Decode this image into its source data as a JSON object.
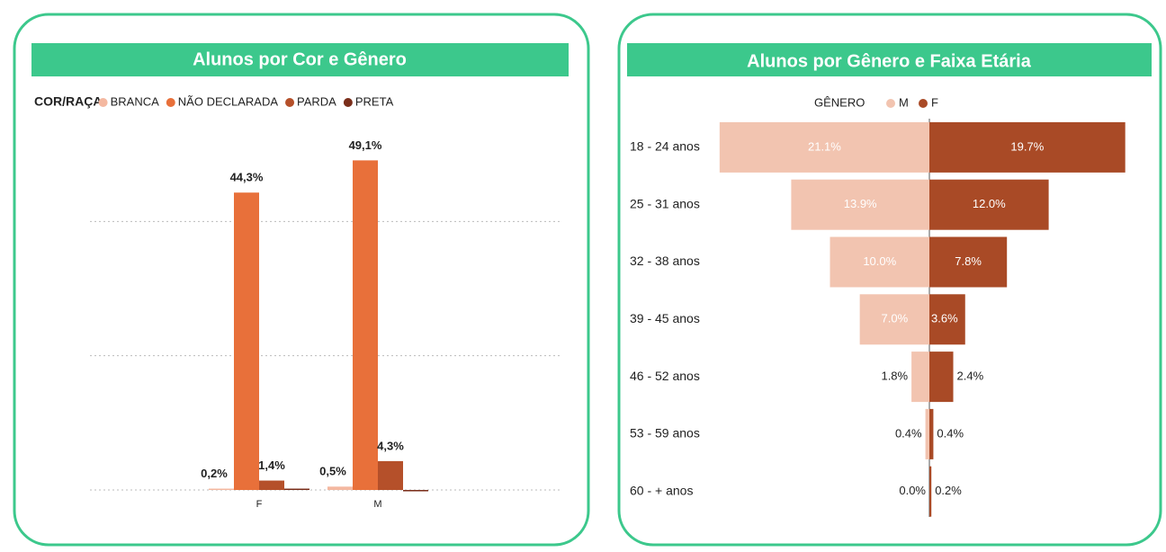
{
  "chart_data": [
    {
      "type": "bar",
      "title": "Alunos por Cor e Gênero",
      "legend_title": "COR/RAÇA",
      "categories": [
        "F",
        "M"
      ],
      "series": [
        {
          "name": "BRANCA",
          "color": "#f4b8a0",
          "values": [
            0.2,
            0.5
          ],
          "value_labels": [
            "0,2%",
            "0,5%"
          ]
        },
        {
          "name": "NÃO DECLARADA",
          "color": "#e8703a",
          "values": [
            44.3,
            49.1
          ],
          "value_labels": [
            "44,3%",
            "49,1%"
          ]
        },
        {
          "name": "PARDA",
          "color": "#b5502a",
          "values": [
            1.4,
            4.3
          ],
          "value_labels": [
            "1,4%",
            "4,3%"
          ]
        },
        {
          "name": "PRETA",
          "color": "#7a2e1a",
          "values": [
            0.2,
            0
          ],
          "value_labels": [
            null,
            null
          ]
        }
      ],
      "ylim": [
        0,
        60
      ],
      "yticks": [
        0,
        20,
        40
      ],
      "grid": true
    },
    {
      "type": "butterfly",
      "title": "Alunos por Gênero e Faixa Etária",
      "legend_title": "GÊNERO",
      "categories": [
        "18 - 24 anos",
        "25 - 31 anos",
        "32 - 38 anos",
        "39 - 45 anos",
        "46 - 52 anos",
        "53 - 59 anos",
        "60 - + anos"
      ],
      "series": [
        {
          "name": "M",
          "color": "#f2c4b0",
          "values": [
            21.1,
            13.9,
            10.0,
            7.0,
            1.8,
            0.4,
            0.0
          ],
          "value_labels": [
            "21.1%",
            "13.9%",
            "10.0%",
            "7.0%",
            "1.8%",
            "0.4%",
            "0.0%"
          ]
        },
        {
          "name": "F",
          "color": "#a94a26",
          "values": [
            19.7,
            12.0,
            7.8,
            3.6,
            2.4,
            0.4,
            0.2
          ],
          "value_labels": [
            "19.7%",
            "12.0%",
            "7.8%",
            "3.6%",
            "2.4%",
            "0.4%",
            "0.2%"
          ]
        }
      ]
    }
  ]
}
